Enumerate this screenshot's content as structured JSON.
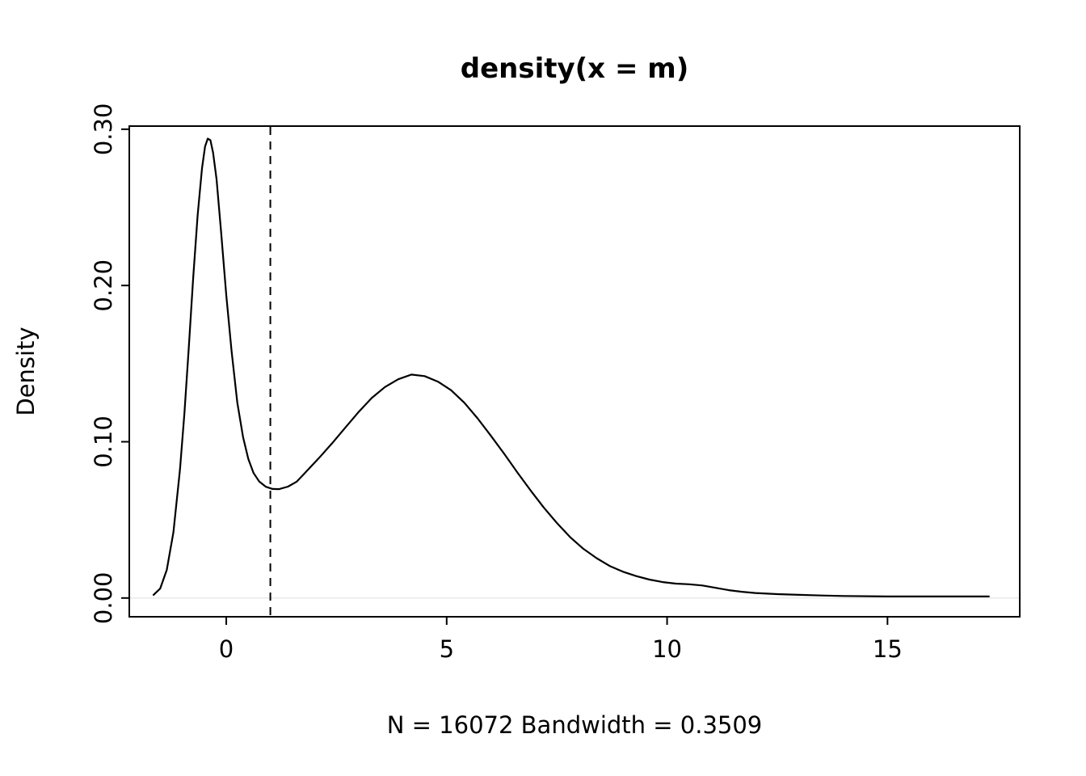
{
  "chart_data": {
    "type": "line",
    "title": "density(x = m)",
    "xlabel": "N = 16072   Bandwidth = 0.3509",
    "ylabel": "Density",
    "n": "16072",
    "bandwidth": "0.3509",
    "x_ticks": [
      0,
      5,
      10,
      15
    ],
    "y_ticks": [
      "0.00",
      "0.10",
      "0.20",
      "0.30"
    ],
    "xlim": [
      -2.2,
      18.0
    ],
    "ylim": [
      -0.012,
      0.302
    ],
    "grid": false,
    "legend": "none",
    "line_color": "#000000",
    "vline": {
      "x": 1.0,
      "style": "dashed",
      "color": "#000000"
    },
    "series": [
      {
        "name": "density",
        "x": [
          -1.65,
          -1.5,
          -1.35,
          -1.2,
          -1.05,
          -0.95,
          -0.85,
          -0.75,
          -0.65,
          -0.55,
          -0.48,
          -0.42,
          -0.36,
          -0.3,
          -0.22,
          -0.12,
          0.0,
          0.12,
          0.25,
          0.38,
          0.5,
          0.62,
          0.75,
          0.9,
          1.05,
          1.2,
          1.4,
          1.6,
          1.8,
          2.1,
          2.4,
          2.7,
          3.0,
          3.3,
          3.6,
          3.9,
          4.2,
          4.5,
          4.8,
          5.1,
          5.4,
          5.7,
          6.0,
          6.3,
          6.6,
          6.9,
          7.2,
          7.5,
          7.8,
          8.1,
          8.4,
          8.7,
          9.0,
          9.3,
          9.6,
          9.9,
          10.2,
          10.5,
          10.8,
          11.1,
          11.4,
          11.7,
          12.0,
          12.5,
          13.0,
          13.5,
          14.0,
          15.0,
          16.0,
          17.3
        ],
        "y": [
          0.002,
          0.006,
          0.018,
          0.042,
          0.082,
          0.118,
          0.16,
          0.205,
          0.245,
          0.275,
          0.289,
          0.294,
          0.293,
          0.285,
          0.268,
          0.235,
          0.194,
          0.158,
          0.125,
          0.103,
          0.089,
          0.08,
          0.0745,
          0.0712,
          0.0698,
          0.0697,
          0.0713,
          0.0745,
          0.0805,
          0.0895,
          0.099,
          0.109,
          0.119,
          0.128,
          0.135,
          0.14,
          0.143,
          0.142,
          0.1385,
          0.133,
          0.125,
          0.115,
          0.104,
          0.0925,
          0.0805,
          0.069,
          0.058,
          0.048,
          0.039,
          0.0315,
          0.0255,
          0.0205,
          0.0168,
          0.014,
          0.0118,
          0.0102,
          0.0092,
          0.0088,
          0.008,
          0.0065,
          0.005,
          0.004,
          0.0032,
          0.0025,
          0.002,
          0.0016,
          0.0013,
          0.001,
          0.001,
          0.001
        ]
      }
    ]
  }
}
